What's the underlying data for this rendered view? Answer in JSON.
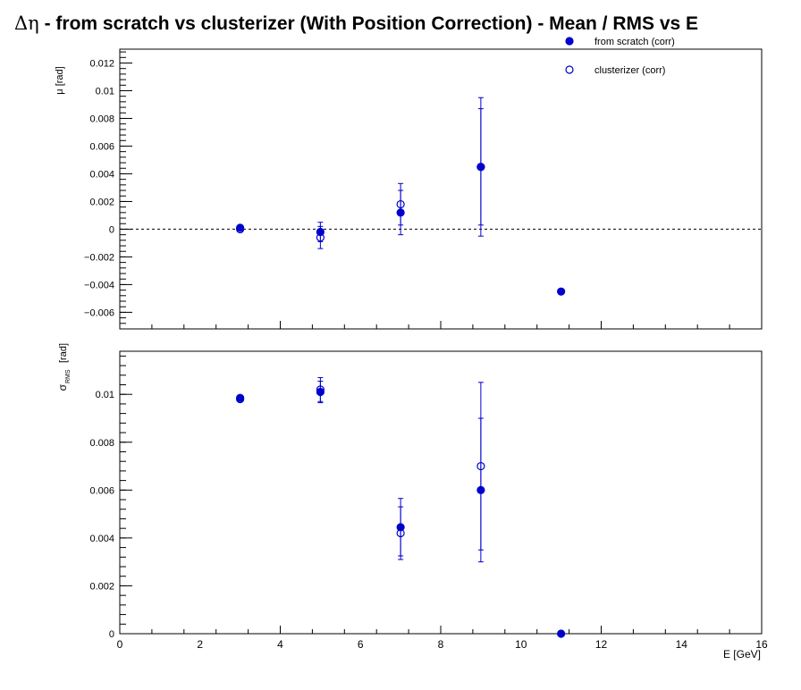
{
  "title": {
    "symbol": "Δη",
    "text": "  -  from scratch vs clusterizer  (With Position Correction)  -  Mean / RMS vs E"
  },
  "colors": {
    "series": "#0000cc",
    "axis": "#000000"
  },
  "chart_data": [
    {
      "type": "scatter",
      "panel": "mean",
      "ylabel": "μ  [rad]",
      "xlabel": "",
      "xlim": [
        0,
        16
      ],
      "ylim": [
        -0.0072,
        0.013
      ],
      "y_ticks": [
        "0.012",
        "0.01",
        "0.008",
        "0.006",
        "0.004",
        "0.002",
        "0",
        "−0.002",
        "−0.004",
        "−0.006"
      ],
      "y_tick_values": [
        0.012,
        0.01,
        0.008,
        0.006,
        0.004,
        0.002,
        0,
        -0.002,
        -0.004,
        -0.006
      ],
      "reference_line": 0,
      "legend": "top-right",
      "series": [
        {
          "name": "from scratch (corr)",
          "marker": "filled-circle",
          "x": [
            3,
            5,
            7,
            9,
            11
          ],
          "y": [
            0.0001,
            -0.0002,
            0.0012,
            0.0045,
            -0.0045
          ],
          "err": [
            0.0001,
            0.0007,
            0.0016,
            0.0042,
            0
          ]
        },
        {
          "name": "clusterizer (corr)",
          "marker": "open-circle",
          "x": [
            3,
            5,
            7,
            9
          ],
          "y": [
            0.0,
            -0.0006,
            0.0018,
            0.0045
          ],
          "err": [
            0.0001,
            0.0008,
            0.0015,
            0.005
          ]
        }
      ]
    },
    {
      "type": "scatter",
      "panel": "rms",
      "ylabel": "σ",
      "ylabel_sub": "RMS",
      "ylabel_unit": "[rad]",
      "xlabel": "E  [GeV]",
      "xlim": [
        0,
        16
      ],
      "ylim": [
        0,
        0.0118
      ],
      "x_ticks": [
        "0",
        "2",
        "4",
        "6",
        "8",
        "10",
        "12",
        "14",
        "16"
      ],
      "y_ticks": [
        "0.01",
        "0.008",
        "0.006",
        "0.004",
        "0.002",
        "0"
      ],
      "y_tick_values": [
        0.01,
        0.008,
        0.006,
        0.004,
        0.002,
        0
      ],
      "series": [
        {
          "name": "from scratch (corr)",
          "marker": "filled-circle",
          "x": [
            3,
            5,
            7,
            9,
            11
          ],
          "y": [
            0.00985,
            0.0101,
            0.00445,
            0.006,
            0.0
          ],
          "err": [
            0.0001,
            0.00045,
            0.0012,
            0.003,
            0
          ]
        },
        {
          "name": "clusterizer (corr)",
          "marker": "open-circle",
          "x": [
            3,
            5,
            7,
            9
          ],
          "y": [
            0.0098,
            0.0102,
            0.0042,
            0.007
          ],
          "err": [
            0.0001,
            0.0005,
            0.0011,
            0.0035
          ]
        }
      ]
    }
  ]
}
